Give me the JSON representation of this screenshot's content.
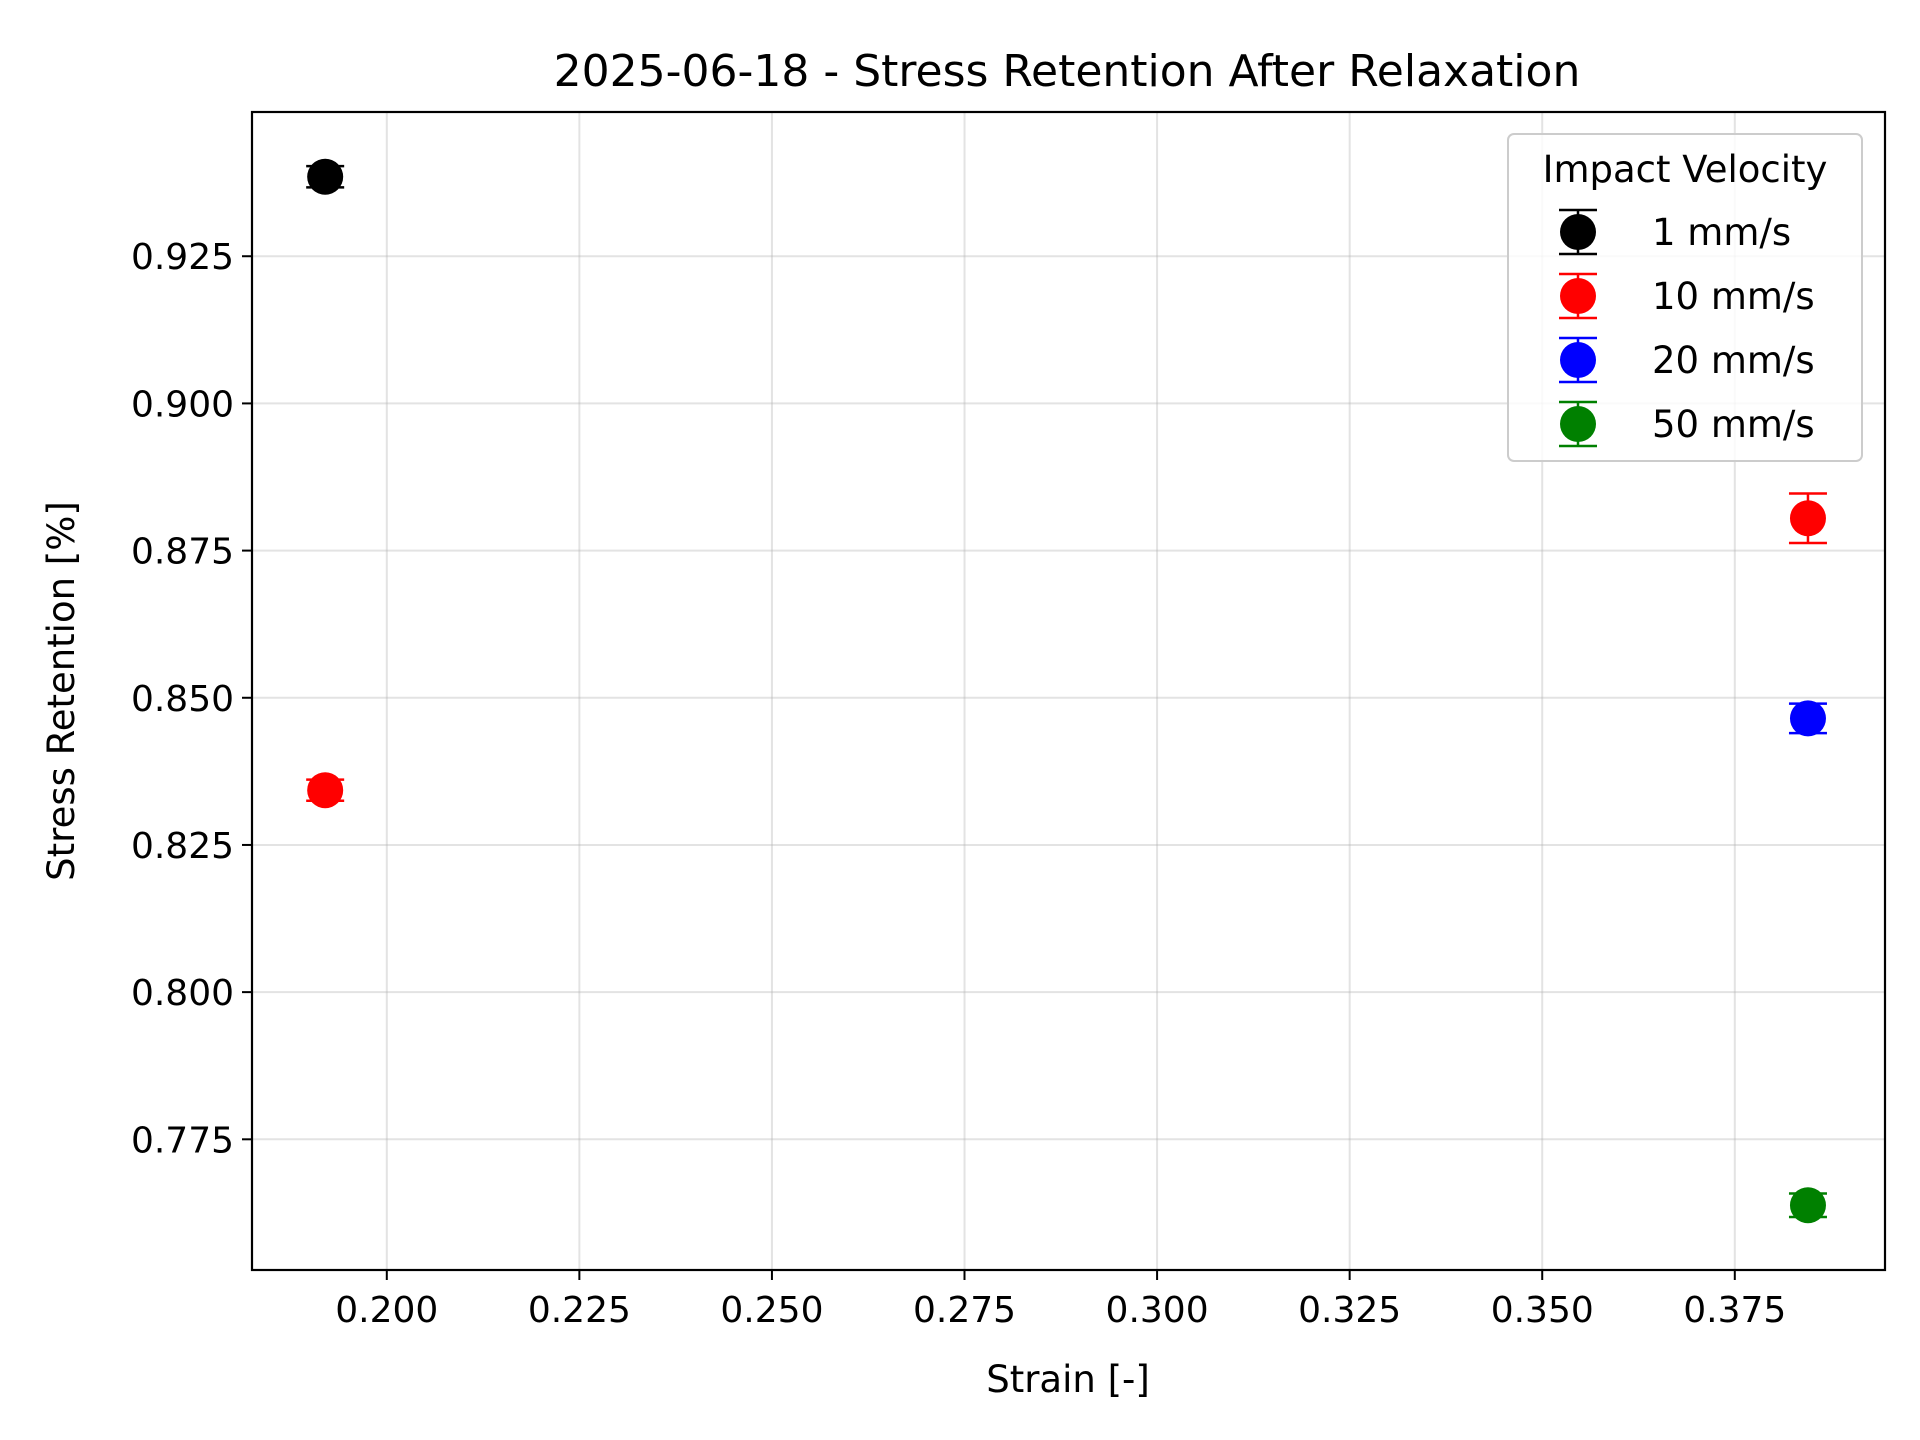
{
  "chart_data": {
    "type": "scatter",
    "title": "2025-06-18 - Stress Retention After Relaxation",
    "xlabel": "Strain [-]",
    "ylabel": "Stress Retention [%]",
    "xlim": [
      0.1825,
      0.3945
    ],
    "ylim": [
      0.7528,
      0.9495
    ],
    "x_ticks": [
      0.2,
      0.225,
      0.25,
      0.275,
      0.3,
      0.325,
      0.35,
      0.375
    ],
    "x_tick_labels": [
      "0.200",
      "0.225",
      "0.250",
      "0.275",
      "0.300",
      "0.325",
      "0.350",
      "0.375"
    ],
    "y_ticks": [
      0.775,
      0.8,
      0.825,
      0.85,
      0.875,
      0.9,
      0.925
    ],
    "y_tick_labels": [
      "0.775",
      "0.800",
      "0.825",
      "0.850",
      "0.875",
      "0.900",
      "0.925"
    ],
    "grid": true,
    "legend": {
      "title": "Impact Velocity",
      "placement": "top-right"
    },
    "series": [
      {
        "name": "1 mm/s",
        "color": "#000000",
        "points": [
          {
            "x": 0.192,
            "y": 0.9385,
            "yerr": 0.0018
          }
        ]
      },
      {
        "name": "10 mm/s",
        "color": "#ff0000",
        "points": [
          {
            "x": 0.192,
            "y": 0.8343,
            "yerr": 0.0018
          },
          {
            "x": 0.3845,
            "y": 0.8805,
            "yerr": 0.0042
          }
        ]
      },
      {
        "name": "20 mm/s",
        "color": "#0000ff",
        "points": [
          {
            "x": 0.3845,
            "y": 0.8465,
            "yerr": 0.0025
          }
        ]
      },
      {
        "name": "50 mm/s",
        "color": "#008000",
        "points": [
          {
            "x": 0.3845,
            "y": 0.7638,
            "yerr": 0.002
          }
        ]
      }
    ]
  }
}
